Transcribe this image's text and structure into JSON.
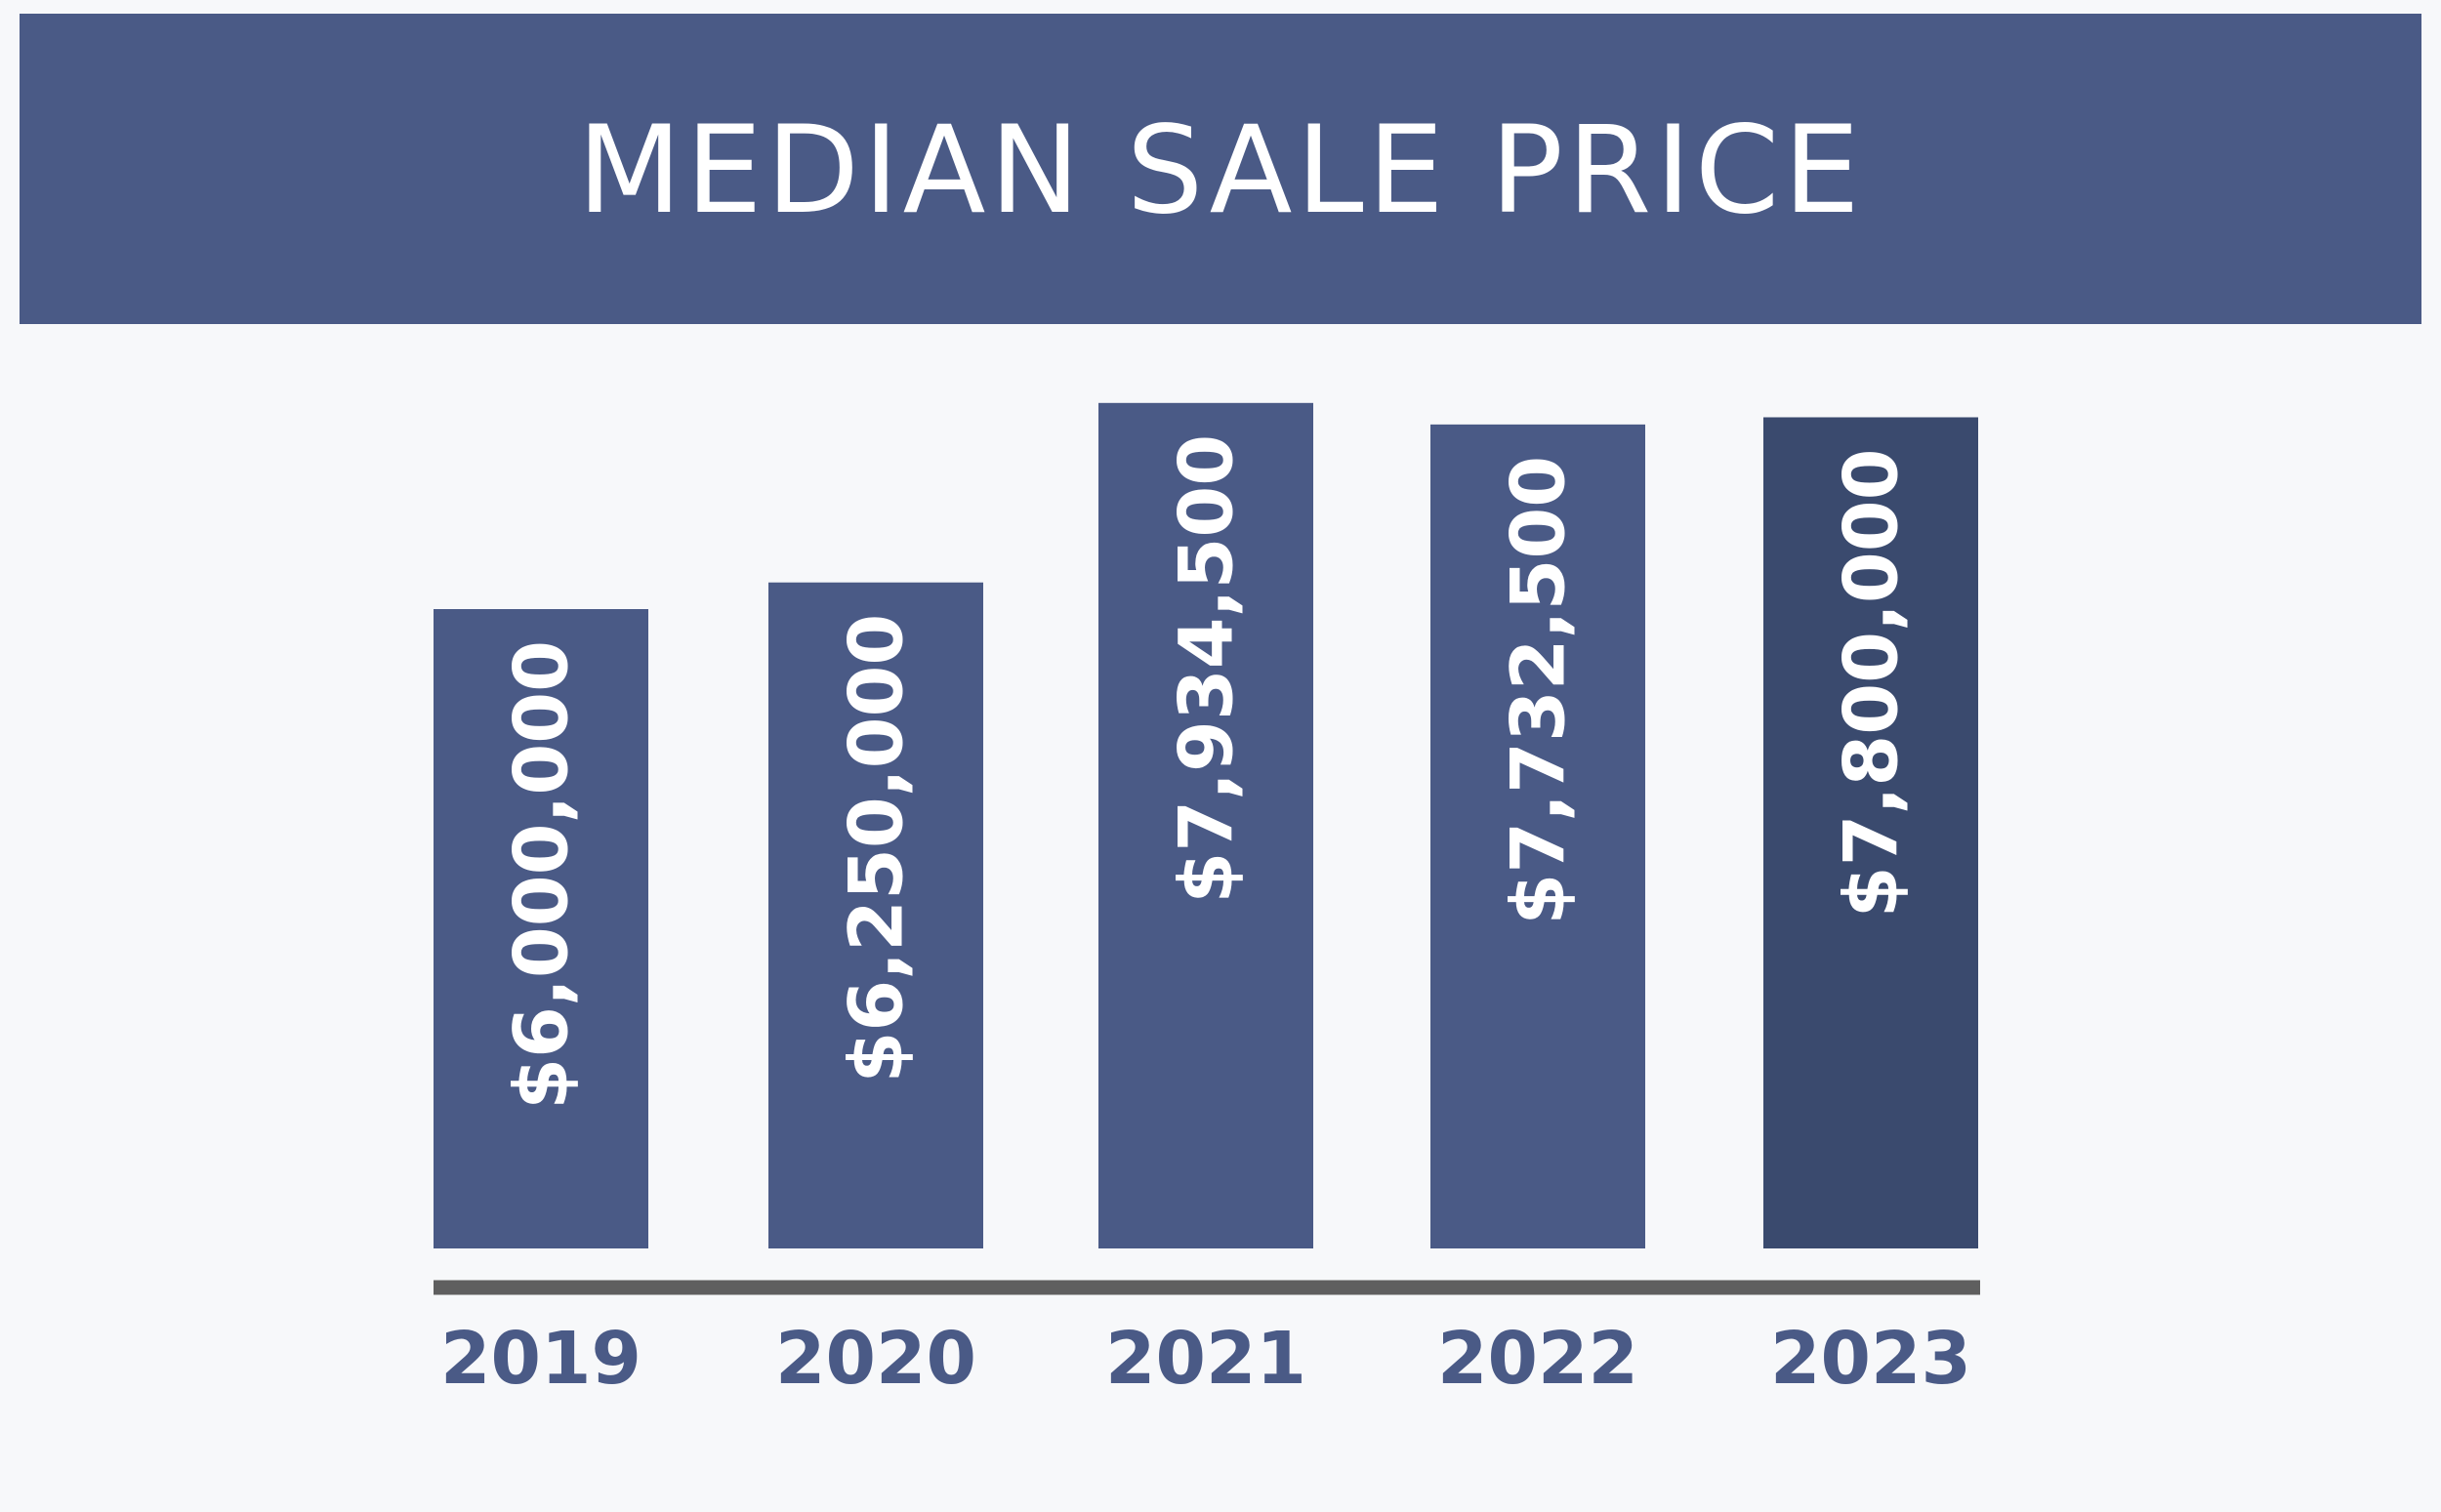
{
  "chart_data": {
    "type": "bar",
    "title": "MEDIAN SALE PRICE",
    "categories": [
      "2019",
      "2020",
      "2021",
      "2022",
      "2023"
    ],
    "values": [
      6000000,
      6250000,
      7934500,
      7732500,
      7800000
    ],
    "value_labels": [
      "$6,000,000",
      "$6,250,000",
      "$7,934,500",
      "$7,732,500",
      "$7,800,000"
    ],
    "xlabel": "",
    "ylabel": "",
    "grid": false,
    "legend": "none",
    "bar_colors": [
      "#4a5a86",
      "#4a5a86",
      "#4a5a86",
      "#4a5a86",
      "#3a4a6e"
    ],
    "axis_color": "#5f5f5f",
    "tick_color": "#4a5a86",
    "title_bg_color": "#4a5a86",
    "background_color": "#f7f8fa"
  }
}
